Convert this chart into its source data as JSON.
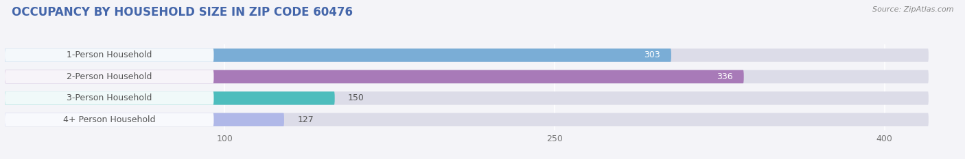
{
  "title": "OCCUPANCY BY HOUSEHOLD SIZE IN ZIP CODE 60476",
  "source": "Source: ZipAtlas.com",
  "categories": [
    "1-Person Household",
    "2-Person Household",
    "3-Person Household",
    "4+ Person Household"
  ],
  "values": [
    303,
    336,
    150,
    127
  ],
  "bar_colors": [
    "#7aadd6",
    "#a87ab8",
    "#4dbdbd",
    "#b0b8e8"
  ],
  "background_color": "#f4f4f8",
  "bar_bg_color": "#dcdce8",
  "label_bg_color": "#ffffff",
  "xlim": [
    0,
    430
  ],
  "xticks": [
    100,
    250,
    400
  ],
  "label_fontsize": 9,
  "value_fontsize": 9,
  "title_fontsize": 12,
  "title_color": "#4466aa",
  "source_color": "#888888",
  "label_text_color": "#555555",
  "value_color_inside": "#ffffff",
  "value_color_outside": "#555555"
}
